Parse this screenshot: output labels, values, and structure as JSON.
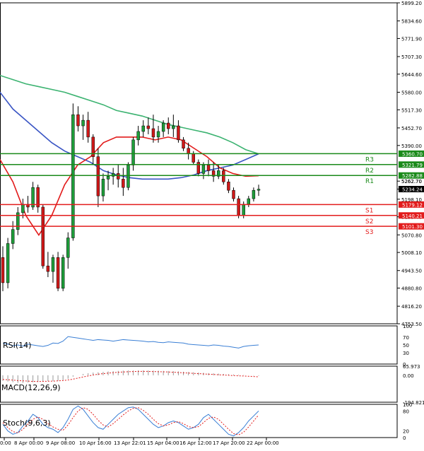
{
  "chart_data": [
    {
      "type": "candlestick",
      "instrument_note": "",
      "price_axis_ticks": [
        "5899.20",
        "5834.60",
        "5771.90",
        "5707.30",
        "5644.60",
        "5580.00",
        "5517.30",
        "5452.70",
        "5390.00",
        "5262.70",
        "5198.10",
        "5135.40",
        "5070.80",
        "5008.10",
        "4943.50",
        "4880.80",
        "4816.20",
        "4753.50"
      ],
      "ylim": [
        4753.5,
        5899.2
      ],
      "time_axis_labels": [
        "00:00",
        "8 Apr 00:00",
        "9 Apr 08:00",
        "10 Apr 16:00",
        "13 Apr 22:01",
        "15 Apr 04:00",
        "16 Apr 12:00",
        "17 Apr 20:00",
        "22 Apr 00:00"
      ],
      "time_axis_labels_display": [
        "0:00",
        "8 Apr 00:00",
        "9 Apr 08:00",
        "10 Apr 16:00",
        "13 Apr 22:01",
        "15 Apr 04:00",
        "16 Apr 12:00",
        "17 Apr 20:00",
        "22 Apr 00:00"
      ],
      "current_price": "5234.24",
      "levels": [
        {
          "name": "R3",
          "value": 5360.7,
          "label": "5360.70",
          "color": "#1a8a1a"
        },
        {
          "name": "R2",
          "value": 5321.79,
          "label": "5321.79",
          "color": "#1a8a1a"
        },
        {
          "name": "R1",
          "value": 5282.88,
          "label": "5282.88",
          "color": "#1a8a1a"
        },
        {
          "name": "S1",
          "value": 5179.12,
          "label": "5179.12",
          "color": "#e21b1b"
        },
        {
          "name": "S2",
          "value": 5140.21,
          "label": "5140.21",
          "color": "#e21b1b"
        },
        {
          "name": "S3",
          "value": 5101.3,
          "label": "5101.30",
          "color": "#e21b1b"
        }
      ],
      "extra_axis_label": "5262.70",
      "candles": [
        [
          4990,
          5030,
          4870,
          4900
        ],
        [
          4900,
          5060,
          4880,
          5040
        ],
        [
          5040,
          5120,
          5020,
          5090
        ],
        [
          5090,
          5170,
          5070,
          5150
        ],
        [
          5150,
          5200,
          5130,
          5180
        ],
        [
          5180,
          5210,
          5150,
          5170
        ],
        [
          5170,
          5260,
          5160,
          5240
        ],
        [
          5240,
          5250,
          5150,
          5170
        ],
        [
          5170,
          5180,
          4950,
          4960
        ],
        [
          4960,
          5010,
          4920,
          4940
        ],
        [
          4940,
          5000,
          4900,
          4990
        ],
        [
          4990,
          5010,
          4870,
          4880
        ],
        [
          4880,
          5000,
          4870,
          4990
        ],
        [
          4990,
          5080,
          4950,
          5060
        ],
        [
          5060,
          5540,
          5050,
          5500
        ],
        [
          5500,
          5530,
          5440,
          5460
        ],
        [
          5460,
          5500,
          5410,
          5480
        ],
        [
          5480,
          5510,
          5400,
          5420
        ],
        [
          5420,
          5430,
          5320,
          5350
        ],
        [
          5350,
          5380,
          5170,
          5210
        ],
        [
          5210,
          5290,
          5190,
          5270
        ],
        [
          5270,
          5300,
          5230,
          5280
        ],
        [
          5280,
          5310,
          5250,
          5290
        ],
        [
          5290,
          5320,
          5240,
          5270
        ],
        [
          5270,
          5310,
          5210,
          5240
        ],
        [
          5240,
          5330,
          5230,
          5320
        ],
        [
          5320,
          5420,
          5300,
          5410
        ],
        [
          5410,
          5460,
          5390,
          5440
        ],
        [
          5440,
          5480,
          5420,
          5460
        ],
        [
          5460,
          5490,
          5430,
          5450
        ],
        [
          5450,
          5500,
          5400,
          5420
        ],
        [
          5420,
          5460,
          5400,
          5440
        ],
        [
          5440,
          5480,
          5420,
          5470
        ],
        [
          5470,
          5490,
          5430,
          5450
        ],
        [
          5450,
          5500,
          5420,
          5460
        ],
        [
          5460,
          5480,
          5400,
          5410
        ],
        [
          5410,
          5420,
          5370,
          5380
        ],
        [
          5380,
          5400,
          5340,
          5360
        ],
        [
          5360,
          5370,
          5320,
          5330
        ],
        [
          5330,
          5340,
          5280,
          5290
        ],
        [
          5290,
          5330,
          5270,
          5320
        ],
        [
          5320,
          5340,
          5280,
          5300
        ],
        [
          5300,
          5330,
          5260,
          5280
        ],
        [
          5280,
          5320,
          5270,
          5300
        ],
        [
          5300,
          5310,
          5250,
          5260
        ],
        [
          5260,
          5270,
          5220,
          5230
        ],
        [
          5230,
          5240,
          5190,
          5200
        ],
        [
          5200,
          5210,
          5130,
          5140
        ],
        [
          5140,
          5190,
          5130,
          5180
        ],
        [
          5180,
          5210,
          5170,
          5200
        ],
        [
          5200,
          5240,
          5190,
          5230
        ],
        [
          5230,
          5250,
          5210,
          5234
        ]
      ],
      "series": [
        {
          "name": "",
          "color": "#3cb371",
          "values": [
            5640,
            5625,
            5610,
            5600,
            5590,
            5580,
            5565,
            5550,
            5535,
            5515,
            5505,
            5495,
            5480,
            5465,
            5455,
            5445,
            5435,
            5420,
            5400,
            5375,
            5360
          ]
        },
        {
          "name": "",
          "color": "#3a55c4",
          "values": [
            5580,
            5520,
            5480,
            5440,
            5400,
            5370,
            5350,
            5330,
            5300,
            5285,
            5275,
            5270,
            5270,
            5270,
            5275,
            5285,
            5300,
            5310,
            5320,
            5340,
            5360
          ]
        },
        {
          "name": "",
          "color": "#e21b1b",
          "values": [
            5340,
            5260,
            5140,
            5070,
            5140,
            5250,
            5320,
            5350,
            5400,
            5420,
            5420,
            5420,
            5410,
            5420,
            5410,
            5380,
            5350,
            5310,
            5290,
            5280,
            5282
          ]
        }
      ]
    },
    {
      "type": "line",
      "name": "RSI(14)",
      "label": "RSI(14)",
      "axis_ticks": [
        "100",
        "70",
        "50",
        "30",
        "0"
      ],
      "ylim": [
        0,
        100
      ],
      "series": [
        {
          "name": "RSI(14)",
          "color": "#3a7fd5",
          "values": [
            55,
            52,
            48,
            50,
            47,
            52,
            50,
            48,
            46,
            49,
            55,
            54,
            60,
            72,
            70,
            68,
            66,
            64,
            62,
            64,
            63,
            62,
            60,
            62,
            64,
            63,
            62,
            61,
            60,
            58,
            59,
            57,
            56,
            58,
            57,
            56,
            55,
            52,
            51,
            50,
            49,
            48,
            50,
            49,
            47,
            46,
            44,
            42,
            46,
            48,
            49,
            50
          ]
        }
      ]
    },
    {
      "type": "bar_line",
      "name": "MACD(12,26,9)",
      "label": "MACD(12,26,9)",
      "axis_ticks": [
        "65.973",
        "0.00",
        "-194.821"
      ],
      "ylim": [
        -194.821,
        65.973
      ],
      "histogram": [
        -40,
        -45,
        -50,
        -55,
        -55,
        -52,
        -50,
        -48,
        -45,
        -43,
        -42,
        -40,
        -35,
        -25,
        -10,
        0,
        10,
        15,
        20,
        22,
        25,
        28,
        30,
        32,
        34,
        35,
        35,
        36,
        36,
        35,
        34,
        33,
        32,
        31,
        30,
        28,
        26,
        24,
        22,
        20,
        18,
        16,
        14,
        12,
        10,
        8,
        6,
        4,
        2,
        0,
        -2,
        -4
      ],
      "signal": [
        -30,
        -32,
        -35,
        -38,
        -40,
        -42,
        -44,
        -45,
        -44,
        -43,
        -42,
        -40,
        -38,
        -34,
        -28,
        -20,
        -12,
        -5,
        2,
        8,
        12,
        16,
        19,
        22,
        24,
        26,
        27,
        28,
        28,
        28,
        27,
        26,
        25,
        24,
        22,
        20,
        18,
        16,
        14,
        12,
        10,
        8,
        6,
        4,
        2,
        0,
        -2,
        -4,
        -5,
        -7,
        -9,
        -11
      ]
    },
    {
      "type": "line",
      "name": "Stoch(9,6,3)",
      "label": "Stoch(9,6,3)",
      "axis_ticks": [
        "100",
        "80",
        "20",
        "0"
      ],
      "ylim": [
        0,
        100
      ],
      "series": [
        {
          "name": "",
          "color": "#3a7fd5",
          "values": [
            40,
            20,
            10,
            15,
            35,
            50,
            70,
            60,
            40,
            30,
            25,
            15,
            30,
            55,
            85,
            95,
            85,
            65,
            45,
            30,
            25,
            40,
            55,
            70,
            80,
            90,
            92,
            85,
            70,
            55,
            40,
            30,
            35,
            45,
            50,
            45,
            35,
            25,
            30,
            40,
            60,
            70,
            55,
            40,
            25,
            10,
            5,
            15,
            30,
            50,
            65,
            80
          ]
        },
        {
          "name": "",
          "color": "#e21b1b",
          "values": [
            45,
            30,
            18,
            14,
            25,
            40,
            55,
            62,
            55,
            42,
            32,
            25,
            22,
            38,
            60,
            80,
            90,
            85,
            70,
            52,
            38,
            32,
            42,
            55,
            68,
            80,
            88,
            90,
            82,
            70,
            55,
            42,
            35,
            38,
            45,
            48,
            42,
            33,
            30,
            33,
            45,
            58,
            62,
            55,
            40,
            25,
            12,
            8,
            16,
            32,
            50,
            68
          ]
        }
      ]
    }
  ]
}
